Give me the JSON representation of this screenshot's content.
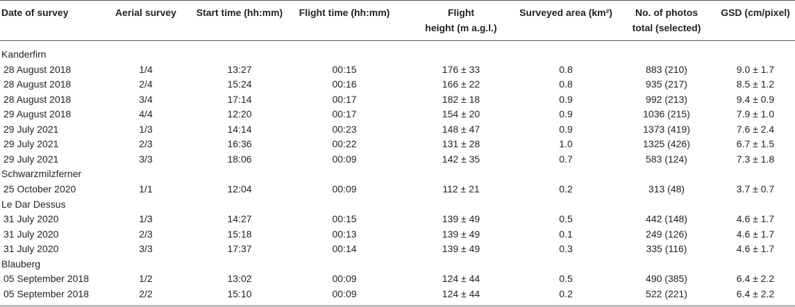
{
  "table": {
    "columns": [
      [
        "Date of survey"
      ],
      [
        "Aerial survey"
      ],
      [
        "Start time (hh:mm)"
      ],
      [
        "Flight time (hh:mm)"
      ],
      [
        "Flight",
        "height (m a.g.l.)"
      ],
      [
        "Surveyed area (km²)"
      ],
      [
        "No. of photos",
        "total (selected)"
      ],
      [
        "GSD (cm/pixel)"
      ]
    ],
    "groups": [
      {
        "name": "Kanderfirn",
        "rows": [
          [
            "28 August 2018",
            "1/4",
            "13:27",
            "00:15",
            "176 ± 33",
            "0.8",
            "883 (210)",
            "9.0 ± 1.7"
          ],
          [
            "28 August 2018",
            "2/4",
            "15:24",
            "00:16",
            "166 ± 22",
            "0.8",
            "935 (217)",
            "8.5 ± 1.2"
          ],
          [
            "28 August 2018",
            "3/4",
            "17:14",
            "00:17",
            "182 ± 18",
            "0.9",
            "992 (213)",
            "9.4 ± 0.9"
          ],
          [
            "29 August 2018",
            "4/4",
            "12:20",
            "00:17",
            "154 ± 20",
            "0.9",
            "1036 (215)",
            "7.9 ± 1.0"
          ],
          [
            "29 July 2021",
            "1/3",
            "14:14",
            "00:23",
            "148 ± 47",
            "0.9",
            "1373 (419)",
            "7.6 ± 2.4"
          ],
          [
            "29 July 2021",
            "2/3",
            "16:36",
            "00:22",
            "131 ± 28",
            "1.0",
            "1325 (426)",
            "6.7 ± 1.5"
          ],
          [
            "29 July 2021",
            "3/3",
            "18:06",
            "00:09",
            "142 ± 35",
            "0.7",
            "583 (124)",
            "7.3 ± 1.8"
          ]
        ]
      },
      {
        "name": "Schwarzmilzferner",
        "rows": [
          [
            "25 October 2020",
            "1/1",
            "12:04",
            "00:09",
            "112 ± 21",
            "0.2",
            "313 (48)",
            "3.7 ± 0.7"
          ]
        ]
      },
      {
        "name": "Le Dar Dessus",
        "rows": [
          [
            "31 July 2020",
            "1/3",
            "14:27",
            "00:15",
            "139 ± 49",
            "0.5",
            "442 (148)",
            "4.6 ± 1.7"
          ],
          [
            "31 July 2020",
            "2/3",
            "15:18",
            "00:13",
            "139 ± 49",
            "0.1",
            "249 (126)",
            "4.6 ± 1.7"
          ],
          [
            "31 July 2020",
            "3/3",
            "17:37",
            "00:14",
            "139 ± 49",
            "0.3",
            "335 (116)",
            "4.6 ± 1.7"
          ]
        ]
      },
      {
        "name": "Blauberg",
        "rows": [
          [
            "05 September 2018",
            "1/2",
            "13:02",
            "00:09",
            "124 ± 44",
            "0.5",
            "490 (385)",
            "6.4 ± 2.2"
          ],
          [
            "05 September 2018",
            "2/2",
            "15:10",
            "00:09",
            "124 ± 44",
            "0.2",
            "522 (221)",
            "6.4 ± 2.2"
          ]
        ]
      }
    ]
  }
}
